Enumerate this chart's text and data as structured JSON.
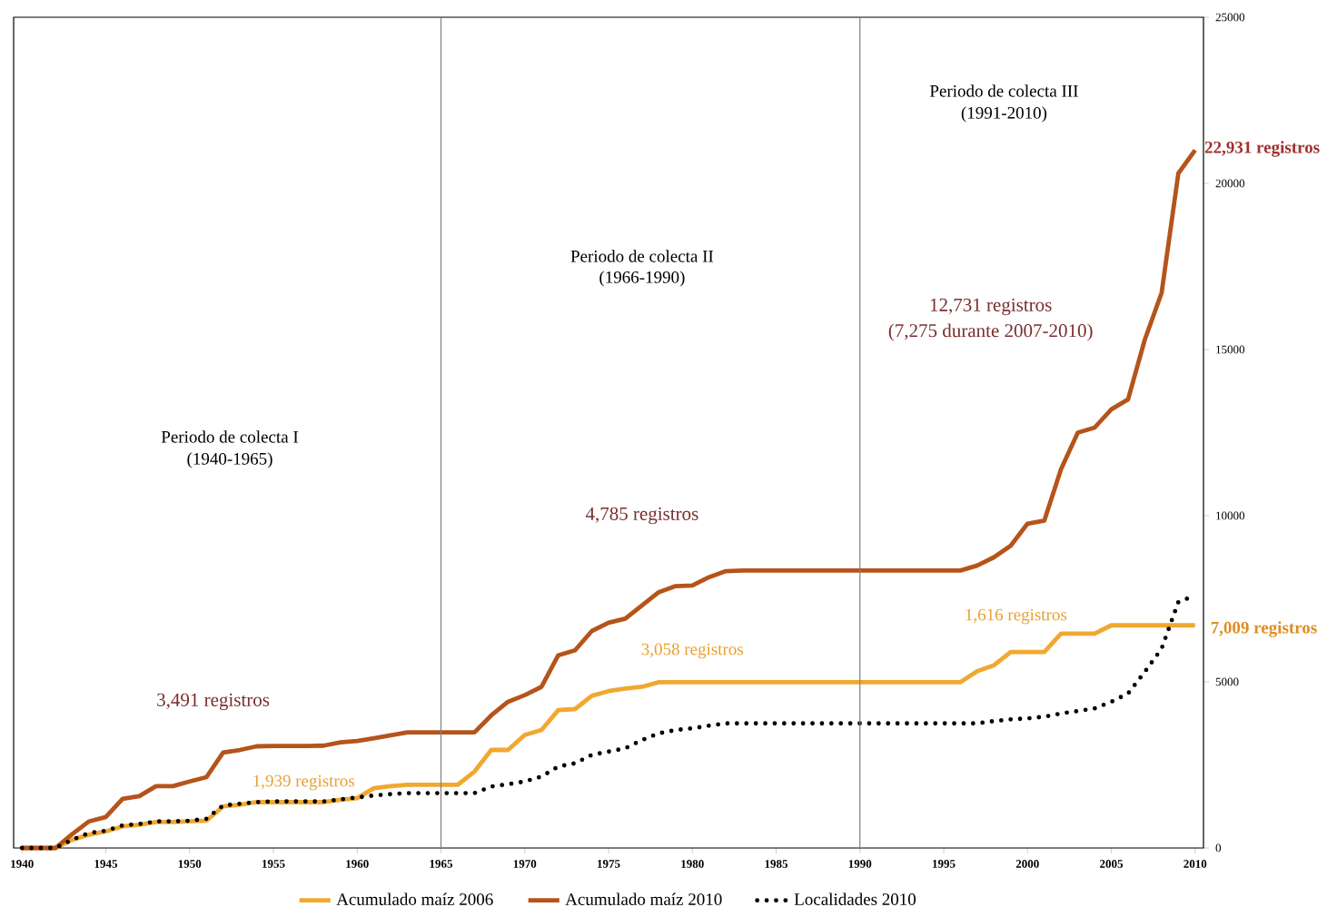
{
  "chart_data": {
    "type": "line",
    "x": [
      1940,
      1941,
      1942,
      1943,
      1944,
      1945,
      1946,
      1947,
      1948,
      1949,
      1950,
      1951,
      1952,
      1953,
      1954,
      1955,
      1956,
      1957,
      1958,
      1959,
      1960,
      1961,
      1962,
      1963,
      1964,
      1965,
      1966,
      1967,
      1968,
      1969,
      1970,
      1971,
      1972,
      1973,
      1974,
      1975,
      1976,
      1977,
      1978,
      1979,
      1980,
      1981,
      1982,
      1983,
      1984,
      1985,
      1986,
      1987,
      1988,
      1989,
      1990,
      1991,
      1992,
      1993,
      1994,
      1995,
      1996,
      1997,
      1998,
      1999,
      2000,
      2001,
      2002,
      2003,
      2004,
      2005,
      2006,
      2007,
      2008,
      2009,
      2010
    ],
    "series": [
      {
        "name": "Acumulado maíz 2006",
        "color": "#f0a830",
        "line_style": "solid",
        "values": [
          0,
          0,
          0,
          250,
          400,
          500,
          650,
          700,
          780,
          780,
          800,
          820,
          1250,
          1300,
          1380,
          1380,
          1380,
          1380,
          1380,
          1450,
          1500,
          1800,
          1860,
          1900,
          1900,
          1900,
          1900,
          2300,
          2950,
          2950,
          3400,
          3550,
          4150,
          4180,
          4580,
          4720,
          4800,
          4850,
          4990,
          4990,
          4990,
          4990,
          4990,
          4990,
          4990,
          4990,
          4990,
          4990,
          4990,
          4990,
          4990,
          4990,
          4990,
          4990,
          4990,
          4990,
          4990,
          5320,
          5500,
          5900,
          5900,
          5900,
          6450,
          6450,
          6450,
          6700,
          6700,
          6700,
          6700,
          6700,
          6700
        ]
      },
      {
        "name": "Acumulado maíz 2010",
        "color": "#b5541a",
        "line_style": "solid",
        "values": [
          0,
          0,
          0,
          420,
          800,
          930,
          1480,
          1560,
          1860,
          1860,
          2000,
          2130,
          2870,
          2950,
          3060,
          3070,
          3070,
          3070,
          3080,
          3180,
          3220,
          3300,
          3390,
          3480,
          3480,
          3480,
          3480,
          3480,
          3990,
          4400,
          4600,
          4850,
          5800,
          5950,
          6530,
          6780,
          6900,
          7300,
          7700,
          7880,
          7900,
          8150,
          8330,
          8350,
          8350,
          8350,
          8350,
          8350,
          8350,
          8350,
          8350,
          8350,
          8350,
          8350,
          8350,
          8350,
          8350,
          8500,
          8750,
          9100,
          9760,
          9850,
          11400,
          12500,
          12650,
          13200,
          13500,
          15300,
          16700,
          20300,
          21000
        ]
      },
      {
        "name": "Localidades 2010",
        "color": "#000000",
        "line_style": "dotted",
        "values": [
          0,
          0,
          0,
          250,
          450,
          520,
          680,
          720,
          800,
          800,
          820,
          880,
          1280,
          1330,
          1380,
          1400,
          1400,
          1400,
          1400,
          1460,
          1520,
          1580,
          1620,
          1650,
          1650,
          1650,
          1650,
          1650,
          1850,
          1920,
          2000,
          2150,
          2450,
          2550,
          2800,
          2900,
          3000,
          3250,
          3450,
          3550,
          3600,
          3680,
          3750,
          3750,
          3750,
          3750,
          3750,
          3750,
          3750,
          3750,
          3750,
          3750,
          3750,
          3750,
          3750,
          3750,
          3750,
          3750,
          3820,
          3870,
          3900,
          3950,
          4050,
          4120,
          4200,
          4400,
          4650,
          5300,
          6000,
          7400,
          7600
        ]
      }
    ],
    "xlim": [
      1939.5,
      2010.5
    ],
    "xticks": [
      1940,
      1945,
      1950,
      1955,
      1960,
      1965,
      1970,
      1975,
      1980,
      1985,
      1990,
      1995,
      2000,
      2005,
      2010
    ],
    "ylim": [
      0,
      25000
    ],
    "yticks": [
      0,
      5000,
      10000,
      15000,
      20000,
      25000
    ],
    "ref_lines": [
      {
        "axis": "x",
        "value": 1965,
        "color": "#808080"
      },
      {
        "axis": "x",
        "value": 1990,
        "color": "#808080"
      }
    ],
    "annotations": [
      "Periodo de colecta I",
      "(1940-1965)",
      "Periodo de colecta II",
      "(1966-1990)",
      "Periodo de colecta III",
      "(1991-2010)",
      "3,491 registros",
      "1,939 registros",
      "4,785 registros",
      "3,058 registros",
      "12,731 registros",
      "(7,275 durante 2007-2010)",
      "1,616 registros",
      "22,931 registros",
      "7,009 registros"
    ],
    "legend": "bottom",
    "marker": "none",
    "grid": false
  }
}
